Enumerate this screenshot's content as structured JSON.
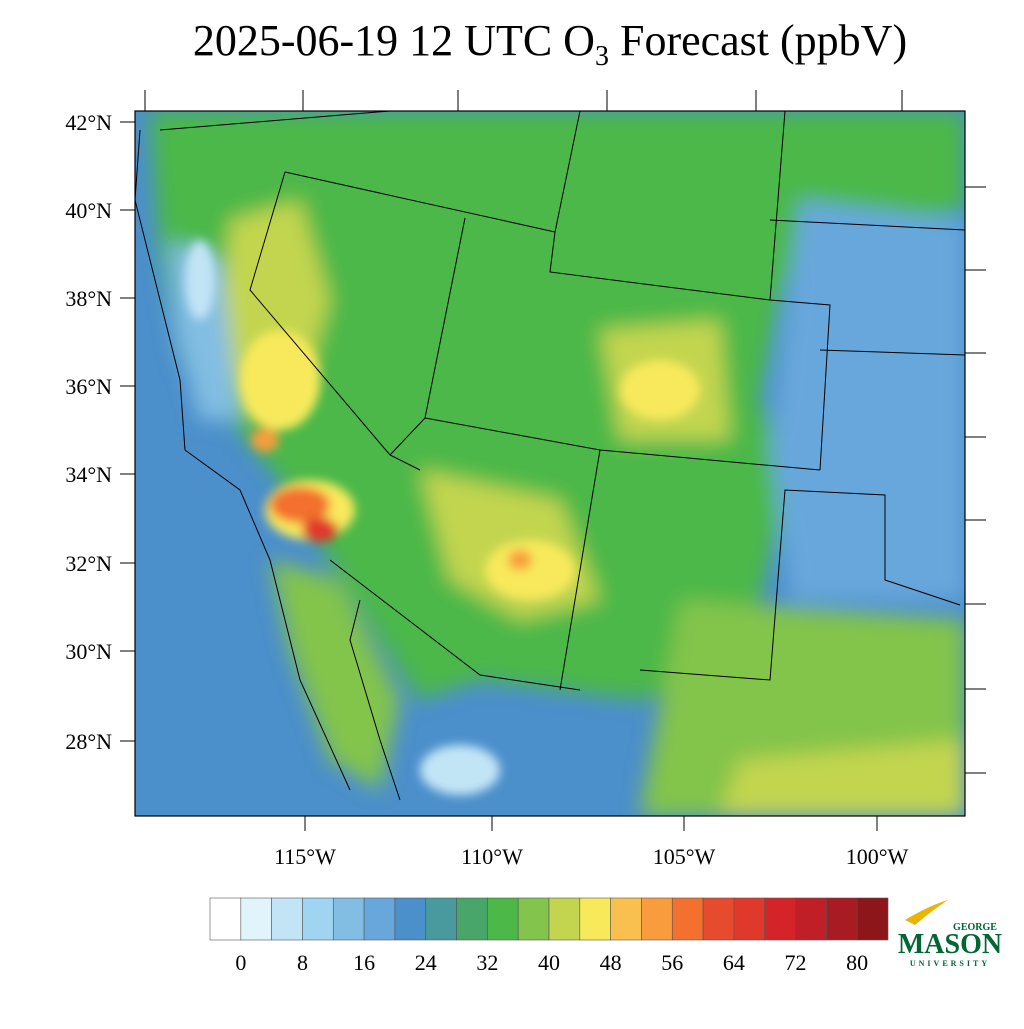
{
  "title": {
    "text": "2025-06-19 12 UTC O",
    "subscript": "3",
    "suffix": " Forecast (ppbV)"
  },
  "map": {
    "lat_labels": [
      "42°N",
      "40°N",
      "38°N",
      "36°N",
      "34°N",
      "32°N",
      "30°N",
      "28°N"
    ],
    "lon_labels": [
      "115°W",
      "110°W",
      "105°W",
      "100°W"
    ]
  },
  "colorbar": {
    "ticks": [
      0,
      8,
      16,
      24,
      32,
      40,
      48,
      56,
      64,
      72,
      80
    ],
    "colors": [
      "#ffffff",
      "#e1f3fb",
      "#c2e5f6",
      "#a0d5f1",
      "#82bde3",
      "#67a7dc",
      "#4b8fcb",
      "#489a9e",
      "#48a66b",
      "#4cb848",
      "#83c44c",
      "#c3d54f",
      "#f8e95b",
      "#f9c04f",
      "#f89c3e",
      "#f3702f",
      "#e54b2c",
      "#e0392b",
      "#d42329",
      "#c01f27",
      "#a91b22",
      "#8c1619"
    ]
  },
  "logo": {
    "top": "GEORGE",
    "main": "MASON",
    "bottom": "UNIVERSITY"
  }
}
